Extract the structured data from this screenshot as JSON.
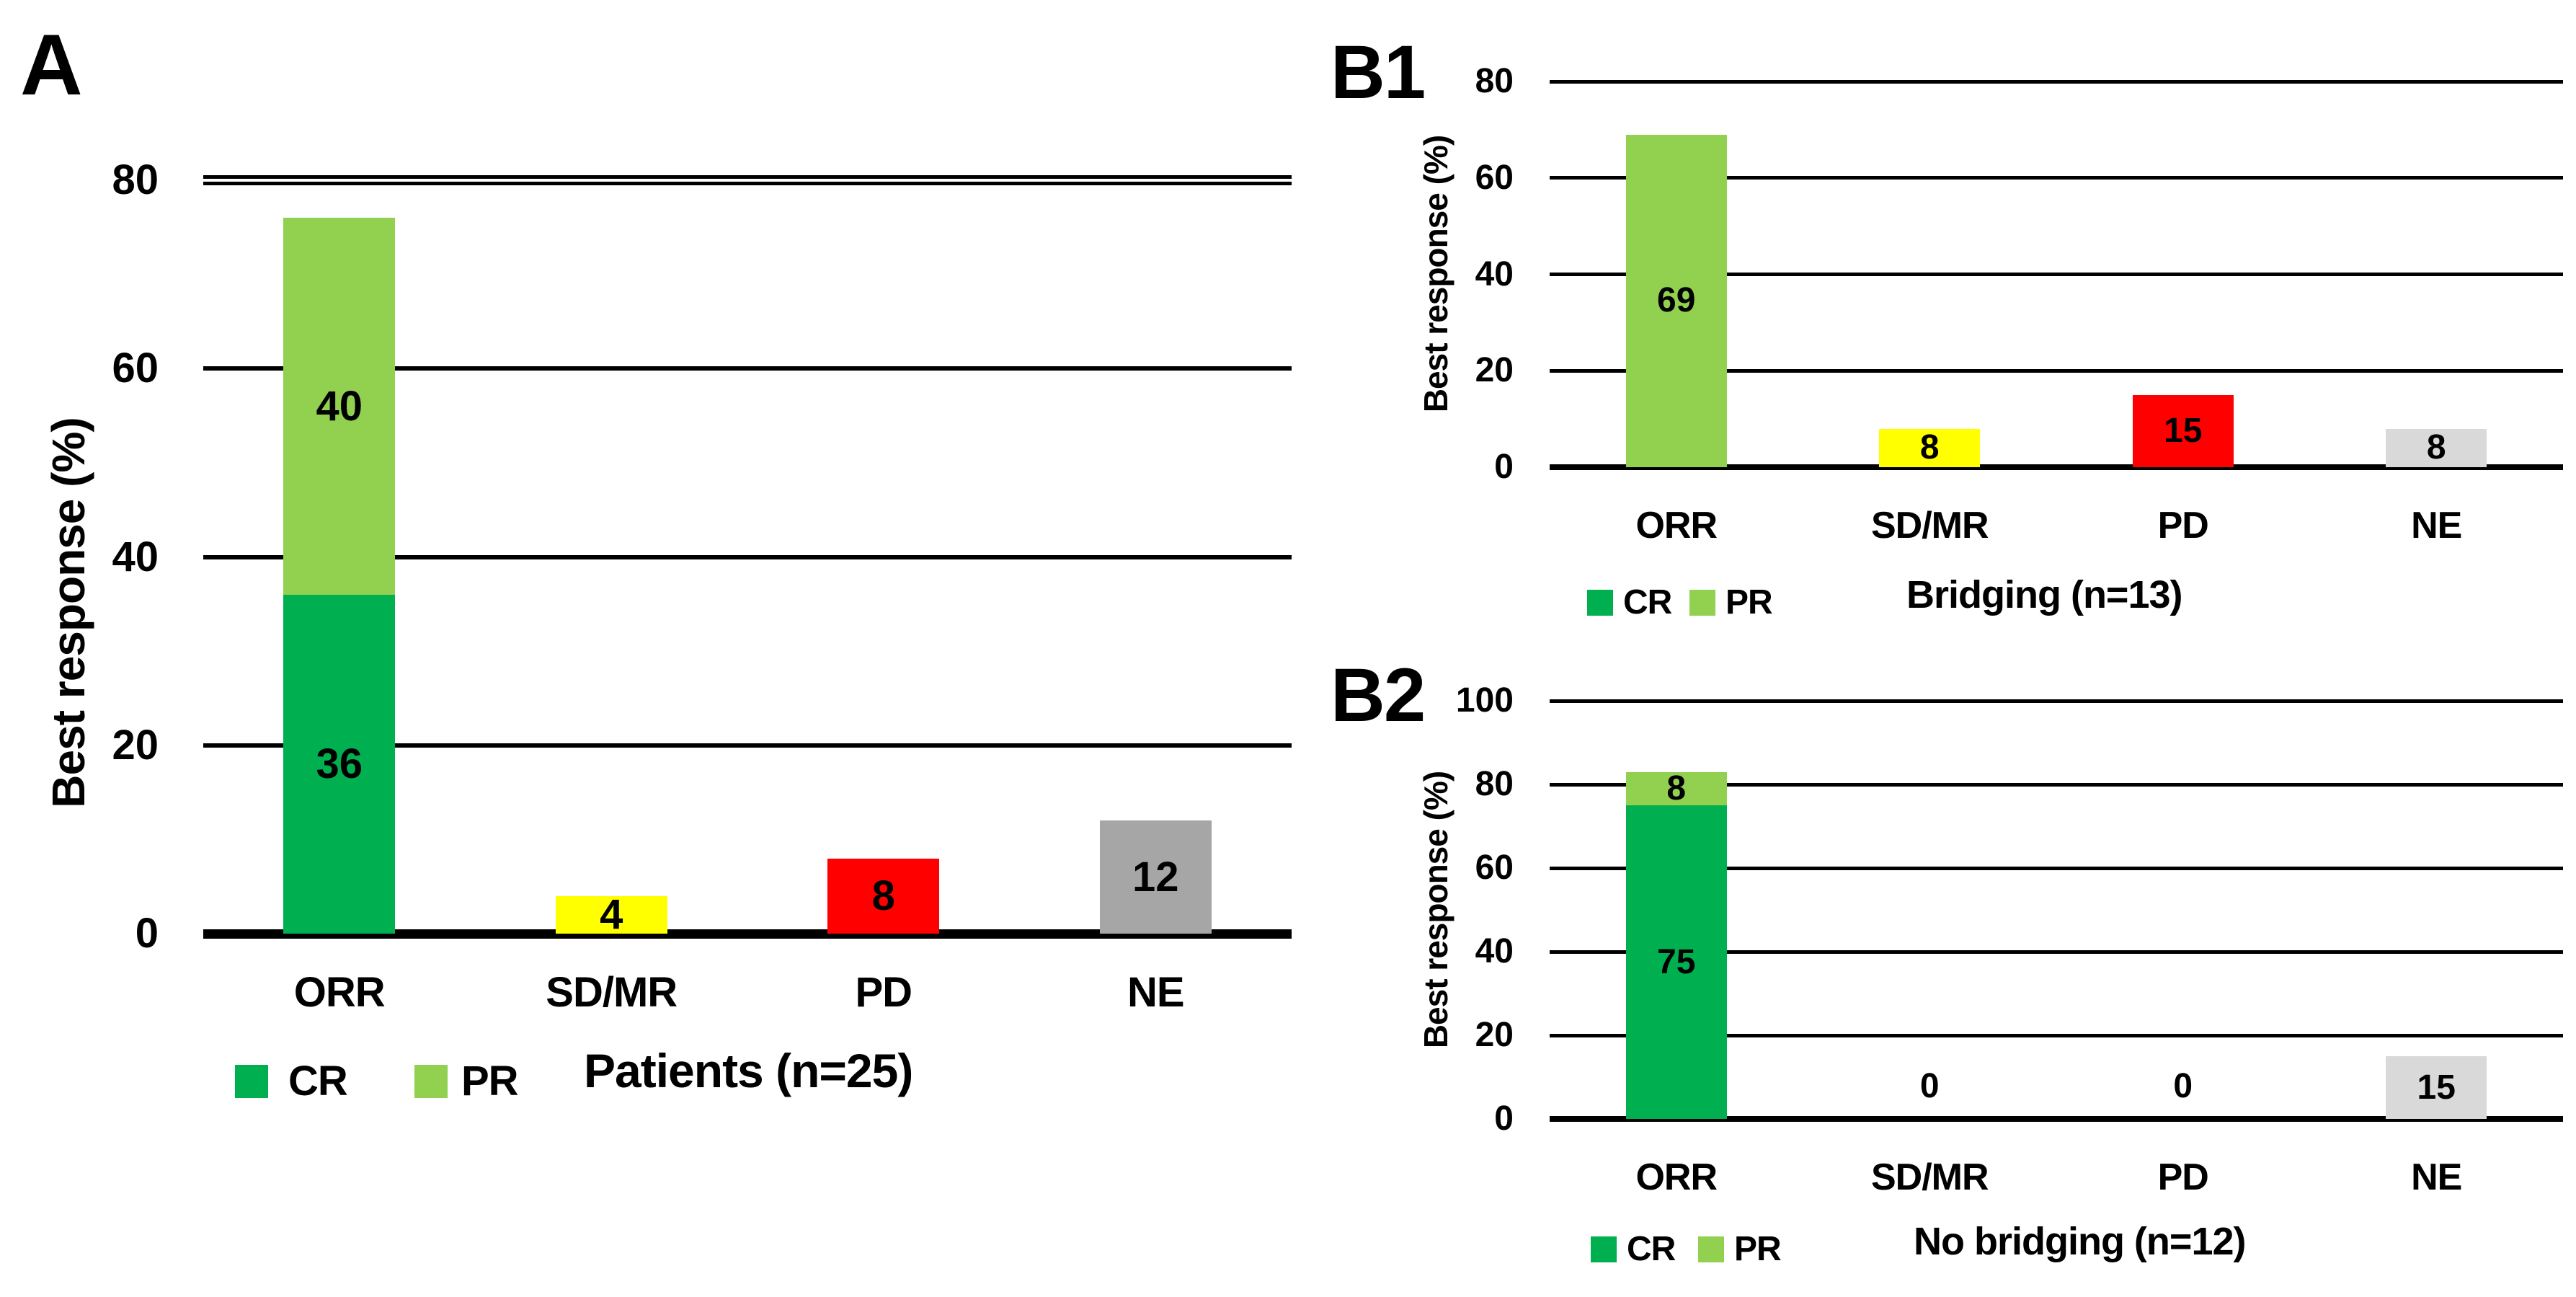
{
  "figure_title": "",
  "chart_data": [
    {
      "id": "A",
      "type": "bar",
      "stacked": true,
      "panel_label": "A",
      "ylabel": "Best response (%)",
      "ylim": [
        0,
        80
      ],
      "yticks": [
        0,
        20,
        40,
        60,
        80
      ],
      "axis_break_top": true,
      "grid": true,
      "legend_position": "bottom",
      "caption": "Patients (n=25)",
      "categories": [
        "ORR",
        "SD/MR",
        "PD",
        "NE"
      ],
      "bars": [
        {
          "category": "ORR",
          "segments": [
            {
              "name": "CR",
              "value": 36,
              "color": "#00B050"
            },
            {
              "name": "PR",
              "value": 40,
              "color": "#92D050"
            }
          ]
        },
        {
          "category": "SD/MR",
          "segments": [
            {
              "name": "SD/MR",
              "value": 4,
              "color": "#FFFF00"
            }
          ]
        },
        {
          "category": "PD",
          "segments": [
            {
              "name": "PD",
              "value": 8,
              "color": "#FF0000"
            }
          ]
        },
        {
          "category": "NE",
          "segments": [
            {
              "name": "NE",
              "value": 12,
              "color": "#A6A6A6"
            }
          ]
        }
      ],
      "legend": [
        {
          "name": "CR",
          "color": "#00B050"
        },
        {
          "name": "PR",
          "color": "#92D050"
        }
      ]
    },
    {
      "id": "B1",
      "type": "bar",
      "stacked": true,
      "panel_label": "B1",
      "ylabel": "Best response (%)",
      "ylim": [
        0,
        80
      ],
      "yticks": [
        0,
        20,
        40,
        60,
        80
      ],
      "axis_break_top": false,
      "grid": true,
      "legend_position": "bottom",
      "caption": "Bridging (n=13)",
      "categories": [
        "ORR",
        "SD/MR",
        "PD",
        "NE"
      ],
      "bars": [
        {
          "category": "ORR",
          "segments": [
            {
              "name": "PR",
              "value": 69,
              "color": "#92D050"
            }
          ]
        },
        {
          "category": "SD/MR",
          "segments": [
            {
              "name": "SD/MR",
              "value": 8,
              "color": "#FFFF00"
            }
          ]
        },
        {
          "category": "PD",
          "segments": [
            {
              "name": "PD",
              "value": 15,
              "color": "#FF0000"
            }
          ]
        },
        {
          "category": "NE",
          "segments": [
            {
              "name": "NE",
              "value": 8,
              "color": "#D9D9D9"
            }
          ]
        }
      ],
      "legend": [
        {
          "name": "CR",
          "color": "#00B050"
        },
        {
          "name": "PR",
          "color": "#92D050"
        }
      ]
    },
    {
      "id": "B2",
      "type": "bar",
      "stacked": true,
      "panel_label": "B2",
      "ylabel": "Best response (%)",
      "ylim": [
        0,
        100
      ],
      "yticks": [
        0,
        20,
        40,
        60,
        80,
        100
      ],
      "axis_break_top": false,
      "grid": true,
      "legend_position": "bottom",
      "caption": "No bridging (n=12)",
      "categories": [
        "ORR",
        "SD/MR",
        "PD",
        "NE"
      ],
      "bars": [
        {
          "category": "ORR",
          "segments": [
            {
              "name": "CR",
              "value": 75,
              "color": "#00B050"
            },
            {
              "name": "PR",
              "value": 8,
              "color": "#92D050"
            }
          ]
        },
        {
          "category": "SD/MR",
          "segments": [
            {
              "name": "SD/MR",
              "value": 0,
              "color": "#FFFF00"
            }
          ]
        },
        {
          "category": "PD",
          "segments": [
            {
              "name": "PD",
              "value": 0,
              "color": "#FF0000"
            }
          ]
        },
        {
          "category": "NE",
          "segments": [
            {
              "name": "NE",
              "value": 15,
              "color": "#D9D9D9"
            }
          ]
        }
      ],
      "legend": [
        {
          "name": "CR",
          "color": "#00B050"
        },
        {
          "name": "PR",
          "color": "#92D050"
        }
      ]
    }
  ]
}
